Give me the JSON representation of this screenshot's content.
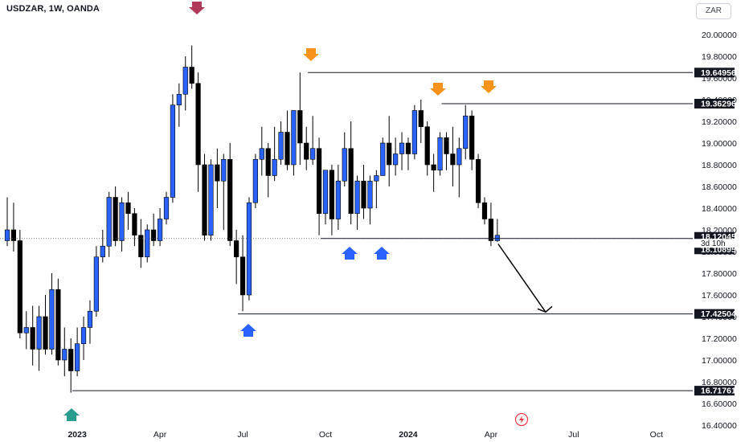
{
  "header": {
    "title": "USDZAR, 1W, OANDA",
    "currency": "ZAR"
  },
  "colors": {
    "up": "#2962ff",
    "down": "#000000",
    "arrow_high": "#f7931a",
    "arrow_low": "#2962ff",
    "arrow_top": "#b03a58",
    "arrow_bottom": "#2a9d8f"
  },
  "chart_data": {
    "type": "candlestick",
    "title": "USDZAR, 1W, OANDA",
    "ylim": [
      16.36,
      20.1
    ],
    "y_ticks": [
      "20.00000",
      "19.80000",
      "19.60000",
      "19.40000",
      "19.20000",
      "19.00000",
      "18.80000",
      "18.60000",
      "18.40000",
      "18.20000",
      "18.00000",
      "17.80000",
      "17.60000",
      "17.40000",
      "17.20000",
      "17.00000",
      "16.80000",
      "16.60000",
      "16.40000"
    ],
    "x_ticks": [
      {
        "label": "2023",
        "bold": true,
        "index": 11
      },
      {
        "label": "Apr",
        "bold": false,
        "index": 24
      },
      {
        "label": "Jul",
        "bold": false,
        "index": 37
      },
      {
        "label": "Oct",
        "bold": false,
        "index": 50
      },
      {
        "label": "2024",
        "bold": true,
        "index": 63
      },
      {
        "label": "Apr",
        "bold": false,
        "index": 76
      },
      {
        "label": "Jul",
        "bold": false,
        "index": 89
      },
      {
        "label": "Oct",
        "bold": false,
        "index": 102
      }
    ],
    "candles": [
      [
        18.1,
        18.5,
        18.2,
        18.05
      ],
      [
        18.2,
        18.45,
        18.1,
        18.0
      ],
      [
        18.1,
        18.2,
        17.25,
        17.2
      ],
      [
        17.25,
        17.45,
        17.3,
        17.1
      ],
      [
        17.3,
        17.5,
        17.1,
        16.95
      ],
      [
        17.1,
        17.5,
        17.4,
        16.9
      ],
      [
        17.4,
        17.6,
        17.1,
        17.05
      ],
      [
        17.1,
        17.8,
        17.65,
        17.05
      ],
      [
        17.65,
        17.75,
        17.0,
        16.95
      ],
      [
        17.0,
        17.3,
        17.1,
        16.85
      ],
      [
        17.1,
        17.2,
        16.9,
        16.7
      ],
      [
        16.9,
        17.3,
        17.15,
        16.85
      ],
      [
        17.15,
        17.4,
        17.3,
        17.0
      ],
      [
        17.3,
        17.55,
        17.45,
        17.15
      ],
      [
        17.45,
        18.05,
        17.95,
        17.4
      ],
      [
        17.95,
        18.2,
        18.05,
        17.9
      ],
      [
        18.05,
        18.55,
        18.5,
        17.95
      ],
      [
        18.5,
        18.6,
        18.1,
        18.05
      ],
      [
        18.1,
        18.5,
        18.45,
        18.0
      ],
      [
        18.45,
        18.55,
        18.35,
        18.2
      ],
      [
        18.35,
        18.4,
        18.15,
        18.05
      ],
      [
        18.15,
        18.3,
        17.95,
        17.85
      ],
      [
        17.95,
        18.25,
        18.2,
        17.9
      ],
      [
        18.2,
        18.35,
        18.1,
        18.05
      ],
      [
        18.1,
        18.4,
        18.3,
        18.05
      ],
      [
        18.3,
        18.55,
        18.5,
        18.25
      ],
      [
        18.5,
        19.45,
        19.35,
        18.45
      ],
      [
        19.35,
        19.55,
        19.45,
        19.15
      ],
      [
        19.45,
        19.8,
        19.7,
        19.3
      ],
      [
        19.7,
        19.9,
        19.55,
        19.5
      ],
      [
        19.55,
        19.65,
        18.8,
        18.55
      ],
      [
        18.8,
        18.9,
        18.15,
        18.1
      ],
      [
        18.15,
        18.85,
        18.8,
        18.1
      ],
      [
        18.8,
        18.95,
        18.65,
        18.4
      ],
      [
        18.65,
        18.9,
        18.85,
        18.2
      ],
      [
        18.85,
        19.0,
        18.1,
        18.05
      ],
      [
        18.1,
        18.2,
        17.95,
        17.7
      ],
      [
        17.95,
        18.15,
        17.6,
        17.45
      ],
      [
        17.6,
        18.5,
        18.45,
        17.55
      ],
      [
        18.45,
        18.9,
        18.85,
        18.4
      ],
      [
        18.85,
        19.15,
        18.95,
        18.7
      ],
      [
        18.95,
        19.0,
        18.7,
        18.5
      ],
      [
        18.7,
        19.15,
        18.85,
        18.65
      ],
      [
        18.85,
        19.2,
        19.1,
        18.8
      ],
      [
        19.1,
        19.3,
        18.8,
        18.75
      ],
      [
        18.8,
        19.3,
        19.3,
        18.7
      ],
      [
        19.3,
        19.65,
        19.0,
        18.8
      ],
      [
        19.0,
        19.15,
        18.85,
        18.75
      ],
      [
        18.85,
        19.25,
        18.95,
        18.8
      ],
      [
        18.95,
        19.05,
        18.35,
        18.15
      ],
      [
        18.35,
        18.75,
        18.75,
        18.25
      ],
      [
        18.75,
        18.8,
        18.3,
        18.15
      ],
      [
        18.3,
        18.8,
        18.65,
        18.2
      ],
      [
        18.65,
        19.1,
        18.95,
        18.6
      ],
      [
        18.95,
        19.2,
        18.35,
        18.25
      ],
      [
        18.35,
        18.7,
        18.65,
        18.2
      ],
      [
        18.65,
        18.8,
        18.4,
        18.3
      ],
      [
        18.4,
        18.7,
        18.65,
        18.25
      ],
      [
        18.65,
        18.75,
        18.7,
        18.4
      ],
      [
        18.7,
        19.05,
        19.0,
        18.7
      ],
      [
        19.0,
        19.25,
        18.8,
        18.6
      ],
      [
        18.8,
        19.05,
        18.9,
        18.7
      ],
      [
        18.9,
        19.1,
        19.0,
        18.75
      ],
      [
        19.0,
        19.05,
        18.9,
        18.75
      ],
      [
        18.9,
        19.35,
        19.3,
        18.85
      ],
      [
        19.3,
        19.4,
        19.15,
        19.0
      ],
      [
        19.15,
        19.2,
        18.8,
        18.7
      ],
      [
        18.8,
        18.9,
        18.75,
        18.55
      ],
      [
        18.75,
        19.1,
        19.05,
        18.7
      ],
      [
        19.05,
        19.1,
        18.9,
        18.75
      ],
      [
        18.9,
        19.15,
        18.8,
        18.6
      ],
      [
        18.8,
        19.05,
        18.95,
        18.5
      ],
      [
        18.95,
        19.35,
        19.25,
        18.85
      ],
      [
        19.25,
        19.3,
        18.85,
        18.75
      ],
      [
        18.85,
        18.9,
        18.45,
        18.4
      ],
      [
        18.45,
        18.5,
        18.3,
        18.25
      ],
      [
        18.3,
        18.45,
        18.1,
        18.05
      ],
      [
        18.1,
        18.3,
        18.15,
        18.09
      ]
    ],
    "price_tags": [
      {
        "label": "19.64956",
        "value": 19.64956
      },
      {
        "label": "19.36296",
        "value": 19.36296
      },
      {
        "label": "18.12045",
        "value": 18.12045
      },
      {
        "label": "18.10895",
        "value": 18.10895
      },
      {
        "label": "17.42504",
        "value": 17.42504
      },
      {
        "label": "16.71761",
        "value": 16.71761
      }
    ],
    "countdown": "3d 10h",
    "current_price": 18.12045
  }
}
